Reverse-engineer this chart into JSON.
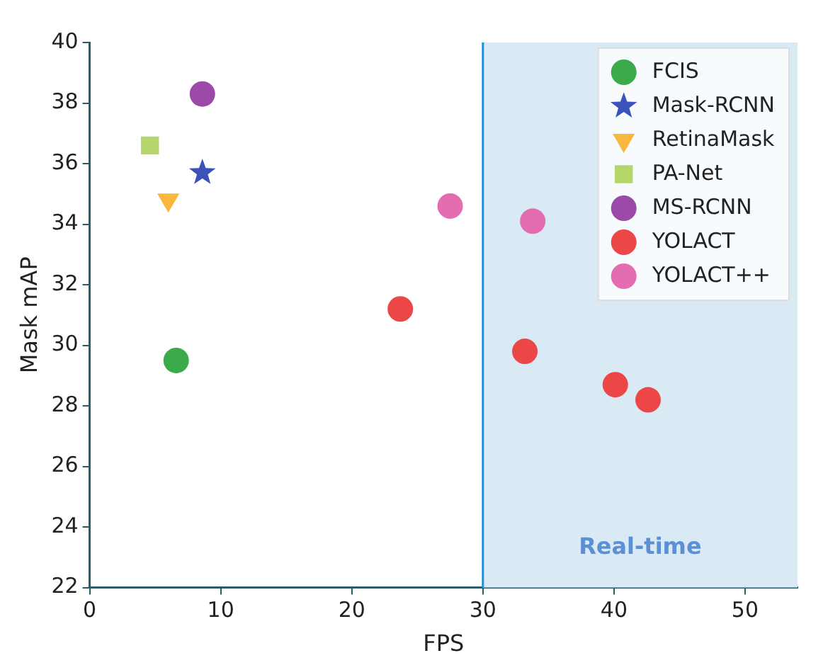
{
  "chart_data": {
    "type": "scatter",
    "xlabel": "FPS",
    "ylabel": "Mask mAP",
    "xlim": [
      0,
      54
    ],
    "xticks": [
      0,
      10,
      20,
      30,
      40,
      50
    ],
    "ylim": [
      22,
      40
    ],
    "yticks": [
      22,
      24,
      26,
      28,
      30,
      32,
      34,
      36,
      38,
      40
    ],
    "grid": false,
    "legend": "top right",
    "series": [
      {
        "name": "FCIS",
        "color": "#3aaa4a",
        "marker": "circle",
        "x": [
          6.6
        ],
        "values": [
          29.5
        ]
      },
      {
        "name": "Mask-RCNN",
        "color": "#3a53b8",
        "marker": "star",
        "x": [
          8.6
        ],
        "values": [
          35.7
        ]
      },
      {
        "name": "RetinaMask",
        "color": "#f9b73e",
        "marker": "triangle_down",
        "x": [
          6.0
        ],
        "values": [
          34.8
        ]
      },
      {
        "name": "PA-Net",
        "color": "#b5d66a",
        "marker": "square",
        "x": [
          4.6
        ],
        "values": [
          36.6
        ]
      },
      {
        "name": "MS-RCNN",
        "color": "#9b4aa8",
        "x": [
          8.6
        ],
        "values": [
          38.3
        ]
      },
      {
        "name": "YOLACT",
        "color": "#ec4646",
        "x": [
          23.7,
          33.2,
          40.1,
          42.6
        ],
        "values": [
          31.2,
          29.8,
          28.7,
          28.2
        ]
      },
      {
        "name": "YOLACT++",
        "color": "#e46db0",
        "x": [
          27.5,
          33.8
        ],
        "values": [
          34.6,
          34.1
        ]
      }
    ],
    "bands": [
      {
        "axis": "x",
        "from": 30,
        "to": 54,
        "label": "Real-time",
        "color": "#d9eaf5"
      }
    ],
    "ref_lines": [
      {
        "axis": "x",
        "value": 30,
        "color": "#1f8fd6"
      }
    ]
  }
}
